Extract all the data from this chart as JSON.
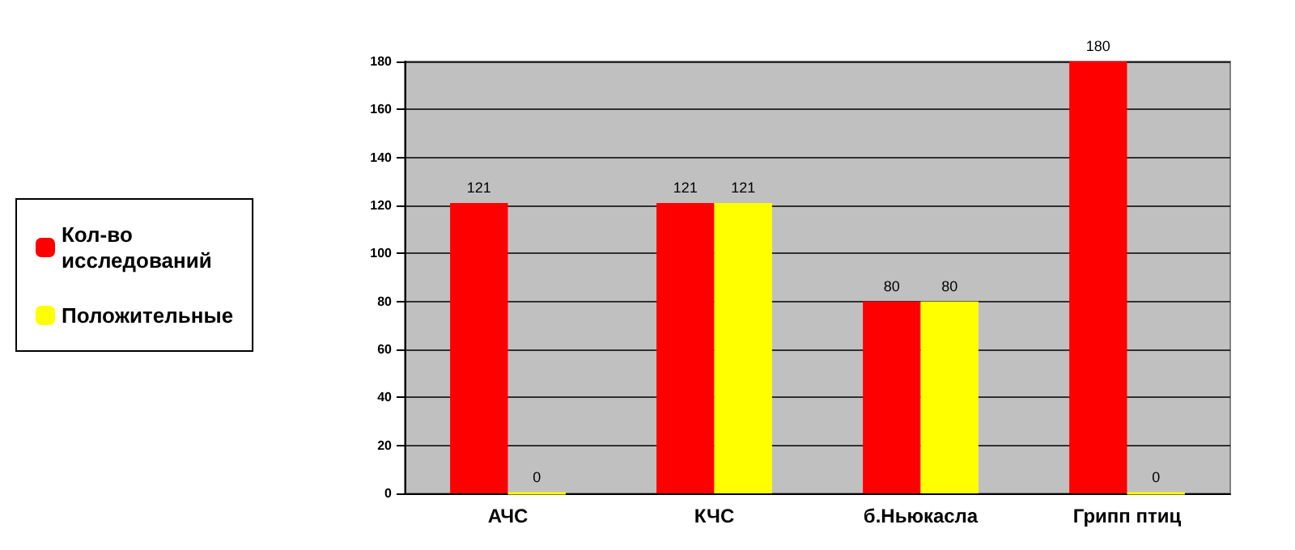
{
  "chart_data": {
    "type": "bar",
    "categories": [
      "АЧС",
      "КЧС",
      "б.Ньюкасла",
      "Грипп птиц"
    ],
    "series": [
      {
        "name": "Кол-во исследований",
        "color": "#ff0000",
        "values": [
          121,
          121,
          80,
          180
        ]
      },
      {
        "name": "Положительные",
        "color": "#ffff00",
        "values": [
          0,
          121,
          80,
          0
        ]
      }
    ],
    "ylim": [
      0,
      180
    ],
    "yticks": [
      0,
      20,
      40,
      60,
      80,
      100,
      120,
      140,
      160,
      180
    ],
    "grid": "y",
    "legend": "left",
    "data_labels": true
  }
}
